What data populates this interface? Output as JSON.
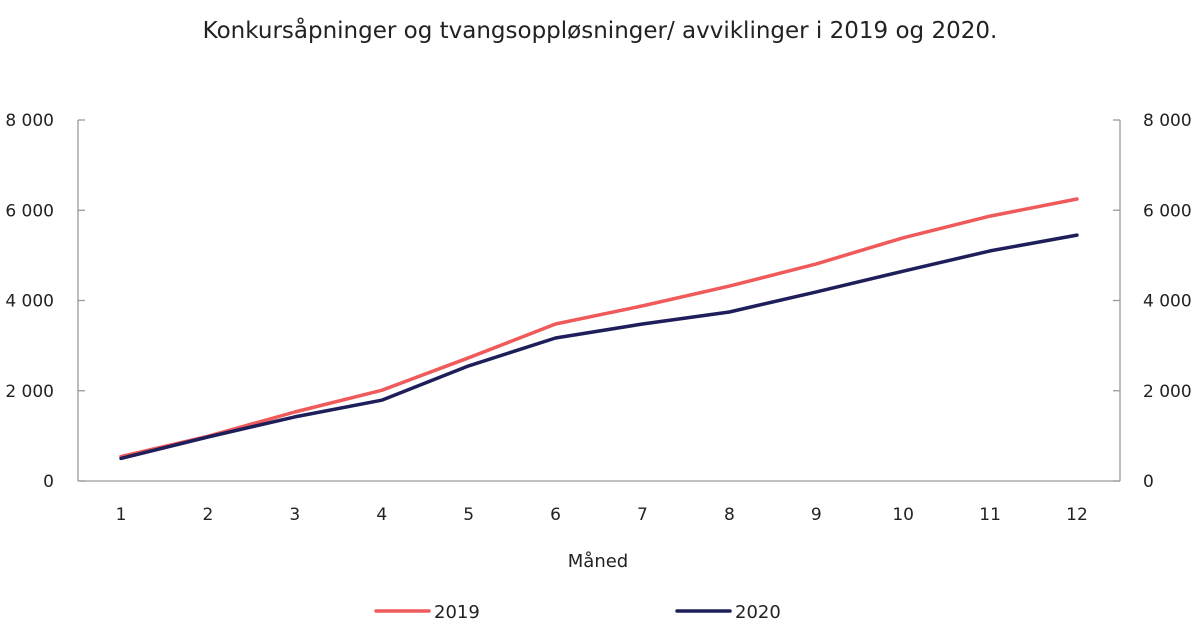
{
  "chart_data": {
    "type": "line",
    "title": "Konkursåpninger og tvangsoppløsninger/ avviklinger i 2019 og 2020.",
    "xlabel": "Måned",
    "ylabel": "",
    "x": [
      1,
      2,
      3,
      4,
      5,
      6,
      7,
      8,
      9,
      10,
      11,
      12
    ],
    "x_tick_labels": [
      "1",
      "2",
      "3",
      "4",
      "5",
      "6",
      "7",
      "8",
      "9",
      "10",
      "11",
      "12"
    ],
    "ylim": [
      0,
      8000
    ],
    "y_ticks": [
      0,
      2000,
      4000,
      6000,
      8000
    ],
    "y_tick_labels": [
      "0",
      "2 000",
      "4 000",
      "6 000",
      "8 000"
    ],
    "y2_tick_labels": [
      "0",
      "2 000",
      "4 000",
      "6 000",
      "8 000"
    ],
    "grid": false,
    "legend_position": "bottom",
    "series": [
      {
        "name": "2019",
        "color": "#F05A5A",
        "values": [
          540,
          990,
          1530,
          2010,
          2730,
          3480,
          3880,
          4320,
          4810,
          5390,
          5870,
          6250
        ]
      },
      {
        "name": "2020",
        "color": "#1E1F5A",
        "values": [
          500,
          975,
          1420,
          1790,
          2550,
          3170,
          3480,
          3745,
          4190,
          4650,
          5100,
          5450
        ]
      }
    ]
  }
}
